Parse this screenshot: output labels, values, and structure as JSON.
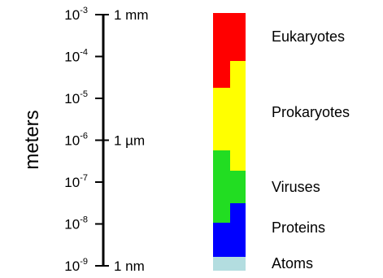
{
  "axis": {
    "title": "meters",
    "scale": "log",
    "range": [
      -9,
      -3
    ],
    "ticks": [
      {
        "exp": -3,
        "mantissa": "10",
        "exponent": "-3",
        "unit": "1 mm"
      },
      {
        "exp": -4,
        "mantissa": "10",
        "exponent": "-4",
        "unit": ""
      },
      {
        "exp": -5,
        "mantissa": "10",
        "exponent": "-5",
        "unit": ""
      },
      {
        "exp": -6,
        "mantissa": "10",
        "exponent": "-6",
        "unit": "1 µm"
      },
      {
        "exp": -7,
        "mantissa": "10",
        "exponent": "-7",
        "unit": ""
      },
      {
        "exp": -8,
        "mantissa": "10",
        "exponent": "-8",
        "unit": ""
      },
      {
        "exp": -9,
        "mantissa": "10",
        "exponent": "-9",
        "unit": "1 nm"
      }
    ]
  },
  "categories": [
    {
      "label": "Eukaryotes",
      "color": "#ff0000"
    },
    {
      "label": "Prokaryotes",
      "color": "#ffff00"
    },
    {
      "label": "Viruses",
      "color": "#22dd22"
    },
    {
      "label": "Proteins",
      "color": "#0000ff"
    },
    {
      "label": "Atoms",
      "color": "#b3dde0"
    }
  ]
}
